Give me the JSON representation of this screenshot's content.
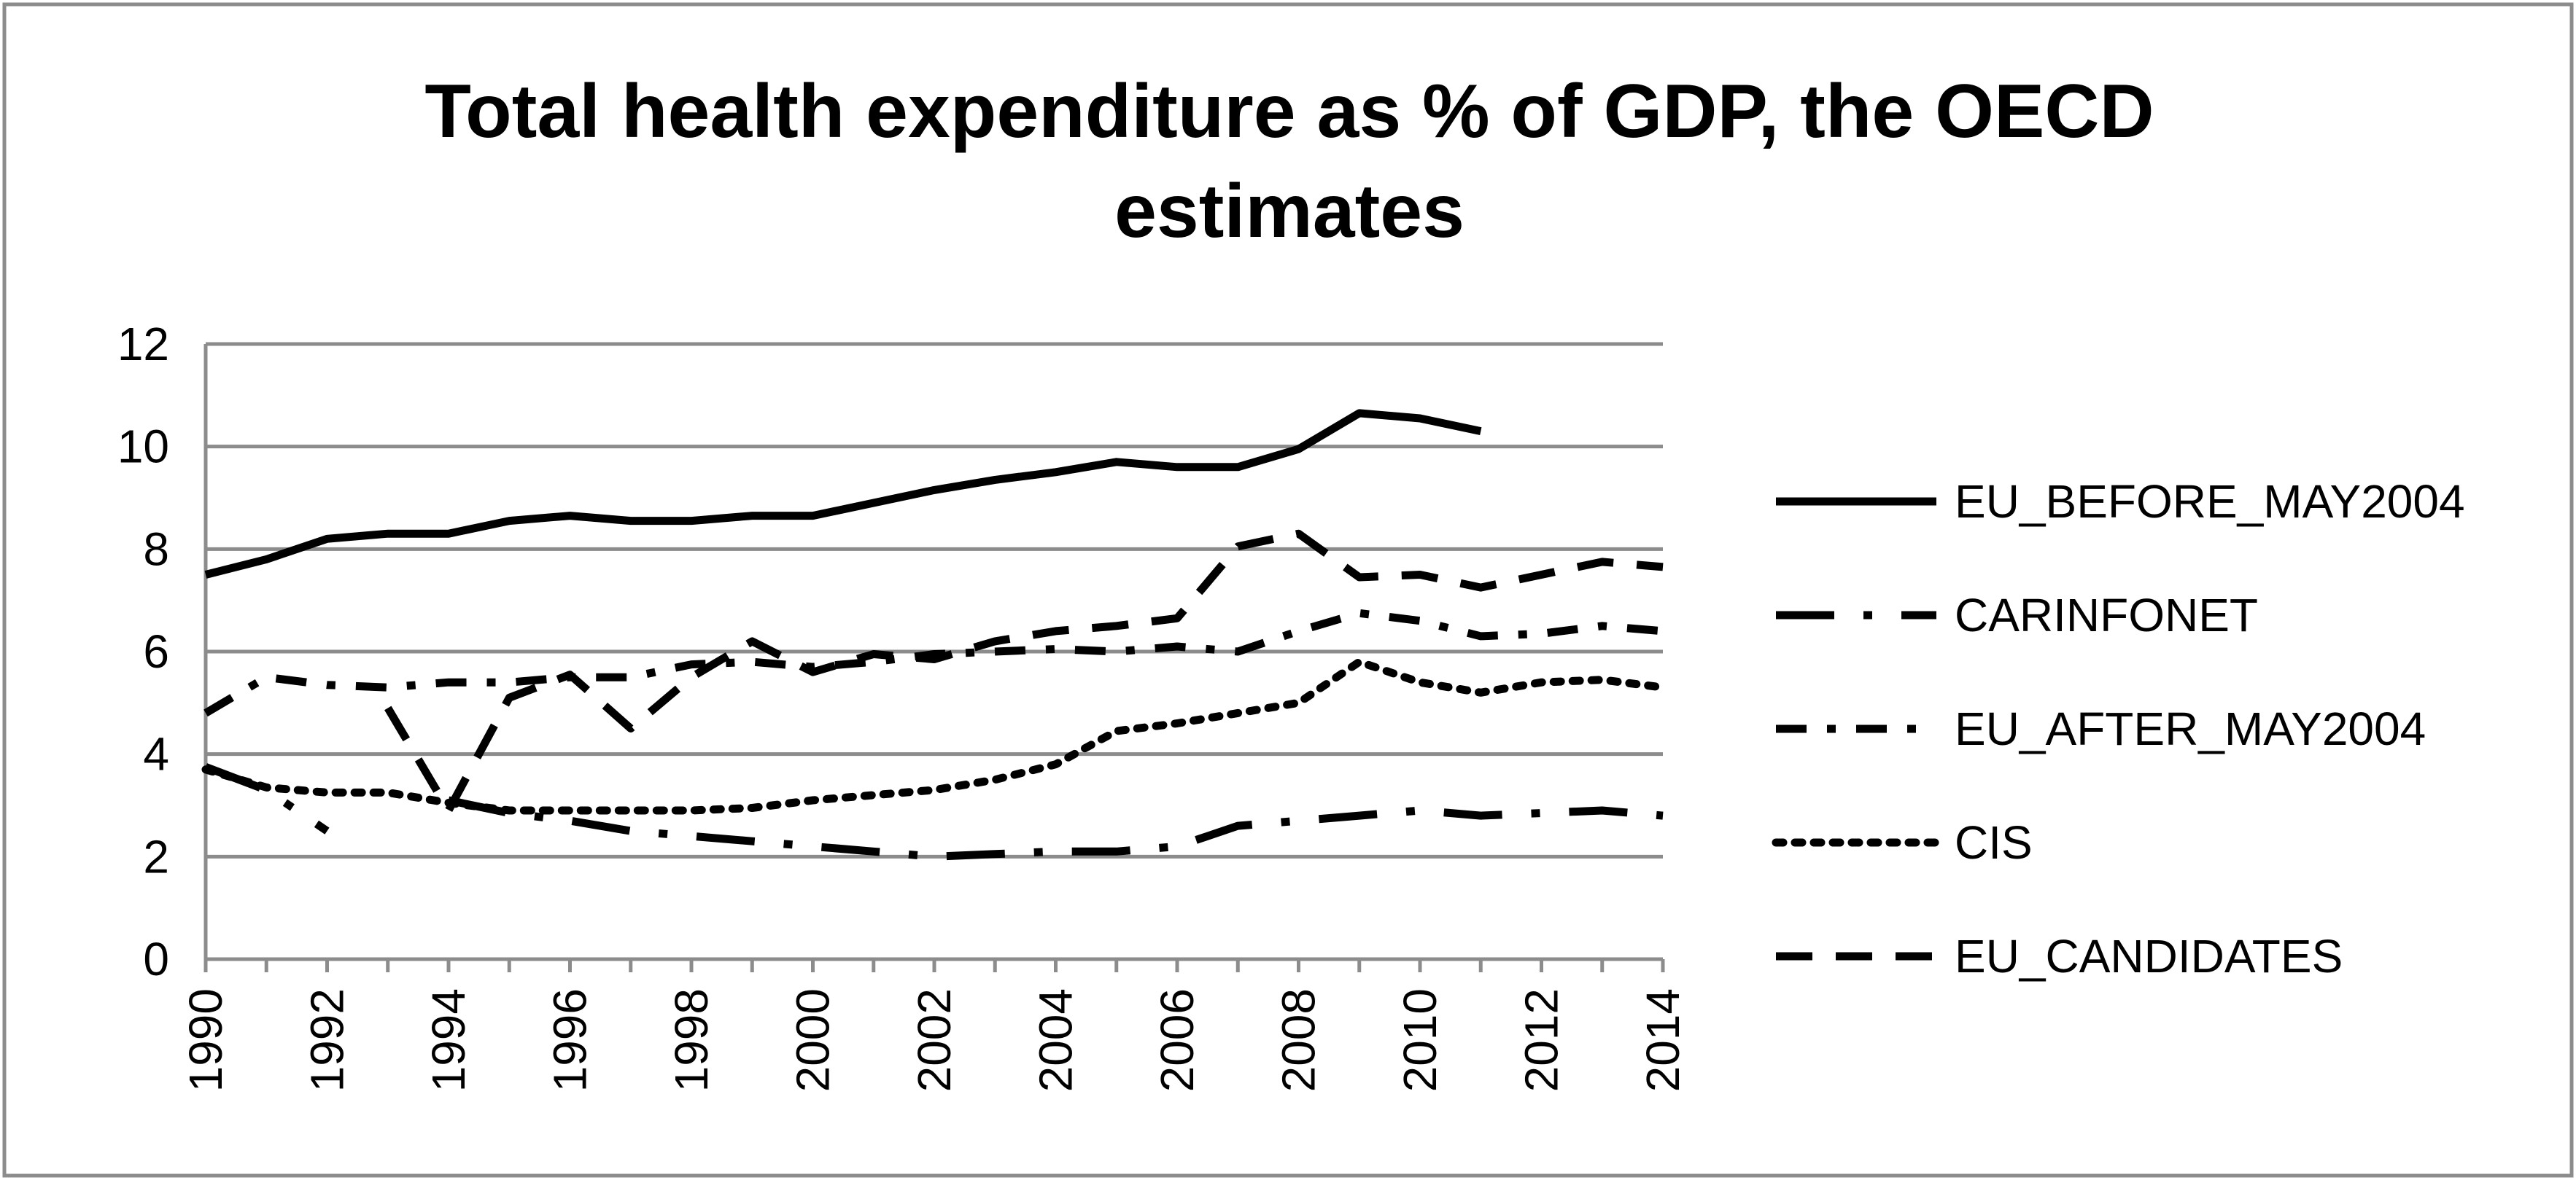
{
  "chart_data": {
    "type": "line",
    "title_lines": [
      "Total health expenditure as % of GDP, the OECD",
      "estimates"
    ],
    "xlabel": "",
    "ylabel": "",
    "x_tick_labels": [
      "1990",
      "1992",
      "1994",
      "1996",
      "1998",
      "2000",
      "2002",
      "2004",
      "2006",
      "2008",
      "2010",
      "2012",
      "2014"
    ],
    "y_tick_labels": [
      "0",
      "2",
      "4",
      "6",
      "8",
      "10",
      "12"
    ],
    "x": [
      1990,
      1991,
      1992,
      1993,
      1994,
      1995,
      1996,
      1997,
      1998,
      1999,
      2000,
      2001,
      2002,
      2003,
      2004,
      2005,
      2006,
      2007,
      2008,
      2009,
      2010,
      2011,
      2012,
      2013,
      2014
    ],
    "xlim": [
      1990,
      2014
    ],
    "ylim": [
      0,
      12
    ],
    "grid": true,
    "legend_position": "right",
    "series": [
      {
        "name": "EU_BEFORE_MAY2004",
        "style": "solid",
        "values": [
          7.5,
          7.8,
          8.2,
          8.3,
          8.3,
          8.55,
          8.65,
          8.55,
          8.55,
          8.65,
          8.65,
          8.9,
          9.15,
          9.35,
          9.5,
          9.7,
          9.6,
          9.6,
          9.95,
          10.65,
          10.55,
          10.3,
          null,
          null,
          null
        ]
      },
      {
        "name": "CARINFONET",
        "style": "long-dash-dot",
        "values": [
          3.75,
          3.3,
          2.5,
          null,
          3.1,
          2.85,
          2.7,
          2.5,
          2.4,
          2.3,
          2.2,
          2.1,
          2.0,
          2.05,
          2.1,
          2.1,
          2.2,
          2.6,
          2.7,
          2.8,
          2.9,
          2.8,
          2.85,
          2.9,
          2.8
        ]
      },
      {
        "name": "EU_AFTER_MAY2004",
        "style": "dash-dot",
        "values": [
          4.8,
          5.5,
          5.35,
          5.3,
          5.4,
          5.4,
          5.5,
          5.5,
          5.75,
          5.8,
          5.7,
          5.8,
          5.95,
          6.0,
          6.05,
          6.0,
          6.1,
          6.0,
          6.4,
          6.75,
          6.6,
          6.3,
          6.35,
          6.5,
          6.4
        ]
      },
      {
        "name": "CIS",
        "style": "dotted",
        "values": [
          3.7,
          3.35,
          3.25,
          3.25,
          3.05,
          2.9,
          2.9,
          2.9,
          2.9,
          2.95,
          3.1,
          3.2,
          3.3,
          3.5,
          3.8,
          4.45,
          4.6,
          4.8,
          5.0,
          5.8,
          5.4,
          5.2,
          5.4,
          5.45,
          5.3
        ]
      },
      {
        "name": "EU_CANDIDATES",
        "style": "dashed",
        "values": [
          null,
          null,
          null,
          4.9,
          2.9,
          5.1,
          5.55,
          4.5,
          5.5,
          6.2,
          5.6,
          5.95,
          5.85,
          6.2,
          6.4,
          6.5,
          6.65,
          8.05,
          8.3,
          7.45,
          7.5,
          7.25,
          7.5,
          7.75,
          7.65
        ]
      }
    ]
  }
}
